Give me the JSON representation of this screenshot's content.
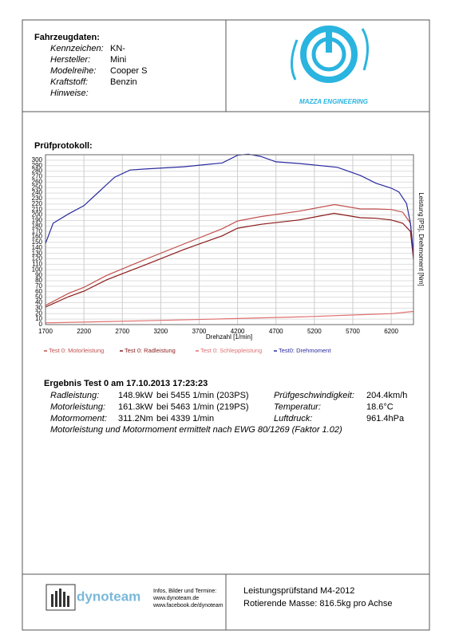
{
  "header": {
    "title": "Fahrzeugdaten:",
    "rows": [
      [
        "Kennzeichen:",
        "KN-"
      ],
      [
        "Hersteller:",
        "Mini"
      ],
      [
        "Modelreihe:",
        "Cooper S"
      ],
      [
        "Kraftstoff:",
        "Benzin"
      ],
      [
        "Hinweise:"
      ]
    ],
    "logo_text": "MAZZA ENGINEERING"
  },
  "chart_data": {
    "type": "line",
    "title": "Prüfprotokoll:",
    "x_label": "Drehzahl [1/min]",
    "y_label": "Leistung [PS], Drehmoment [Nm]",
    "xlim": [
      1700,
      6490
    ],
    "xticks": [
      1700,
      2200,
      2700,
      3200,
      3700,
      4200,
      4700,
      5200,
      5700,
      6200
    ],
    "ylim": [
      0,
      310
    ],
    "yticks": [
      0,
      10,
      20,
      30,
      40,
      50,
      60,
      70,
      80,
      90,
      100,
      110,
      120,
      130,
      140,
      150,
      160,
      170,
      180,
      190,
      200,
      210,
      220,
      230,
      240,
      250,
      260,
      270,
      280,
      290,
      300
    ],
    "grid": true,
    "series": [
      {
        "name": "Test 0: Motorleistung",
        "color": "#c0504d",
        "x": [
          1700,
          2000,
          2200,
          2500,
          3000,
          3500,
          4000,
          4200,
          4500,
          5000,
          5463,
          5800,
          6000,
          6200,
          6350,
          6450,
          6490
        ],
        "values": [
          35,
          57,
          68,
          90,
          119,
          147,
          175,
          189,
          197,
          207,
          219,
          211,
          211,
          210,
          205,
          185,
          127
        ]
      },
      {
        "name": "Test 0: Radleistung",
        "color": "#8b1a1a",
        "x": [
          1700,
          2000,
          2200,
          2500,
          3000,
          3500,
          4000,
          4200,
          4500,
          5000,
          5455,
          5800,
          6000,
          6200,
          6350,
          6450,
          6490
        ],
        "values": [
          32,
          51,
          61,
          82,
          109,
          137,
          162,
          176,
          183,
          191,
          203,
          195,
          194,
          191,
          185,
          170,
          119
        ]
      },
      {
        "name": "Test 0: Schleppleistung",
        "color": "#e07070",
        "x": [
          1700,
          3000,
          4200,
          5000,
          5800,
          6200,
          6490
        ],
        "values": [
          3,
          7,
          11,
          14,
          18,
          20,
          24
        ]
      },
      {
        "name": "Test0: Drehmoment",
        "color": "#2a2aa0",
        "x": [
          1700,
          1800,
          2000,
          2200,
          2400,
          2600,
          2800,
          3000,
          3500,
          4000,
          4200,
          4339,
          4500,
          4700,
          5000,
          5500,
          5800,
          6000,
          6200,
          6300,
          6400,
          6450,
          6490
        ],
        "values": [
          148,
          185,
          202,
          217,
          243,
          269,
          282,
          284,
          288,
          295,
          309,
          311,
          307,
          297,
          294,
          287,
          272,
          258,
          249,
          242,
          221,
          185,
          127
        ]
      }
    ]
  },
  "results": {
    "title": "Ergebnis Test 0 am 17.10.2013 17:23:23",
    "rows": [
      [
        "Radleistung:",
        "148.9kW",
        "bei 5455 1/min (203PS)",
        "Prüfgeschwindigkeit:",
        "204.4km/h"
      ],
      [
        "Motorleistung:",
        "161.3kW",
        "bei 5463 1/min (219PS)",
        "Temperatur:",
        "18.6°C"
      ],
      [
        "Motormoment:",
        "311.2Nm",
        "bei 4339 1/min",
        "Luftdruck:",
        "961.4hPa"
      ]
    ],
    "note": "Motorleistung und Motormoment ermittelt nach EWG 80/1269 (Faktor 1.02)"
  },
  "footer": {
    "brand": "dynoteam",
    "info": [
      "Infos, Bilder und Termine:",
      "www.dynoteam.de",
      "www.facebook.de/dynoteam"
    ],
    "lines": [
      "Leistungsprüfstand M4-2012",
      "Rotierende Masse: 816.5kg pro Achse"
    ]
  }
}
